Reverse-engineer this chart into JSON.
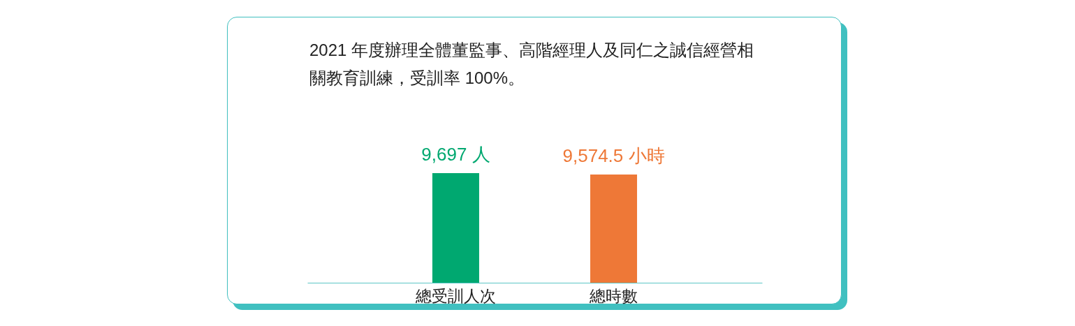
{
  "chart_data": {
    "type": "bar",
    "title": "2021 年度辦理全體董監事、高階經理人及同仁之誠信經營相關教育訓練，受訓率 100%。",
    "categories": [
      "總受訓人次",
      "總時數"
    ],
    "values": [
      9697,
      9574.5
    ],
    "colors": [
      "#00a870",
      "#ee7837"
    ],
    "value_labels": [
      "9,697 人",
      "9,574.5 小時"
    ],
    "grid": false,
    "legend": false
  }
}
